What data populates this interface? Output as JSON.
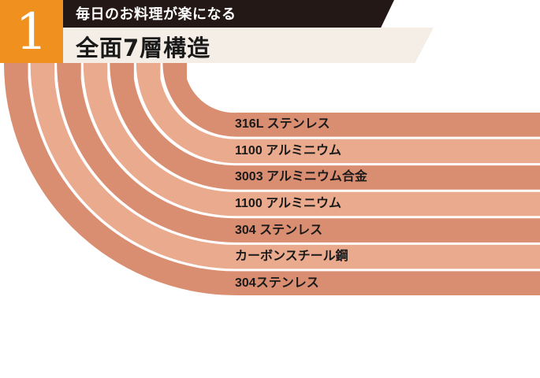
{
  "header": {
    "number": "1",
    "subtitle": "毎日のお料理が楽になる",
    "title": "全面7層構造"
  },
  "colors": {
    "accent": "#f0901e",
    "dark_band": "#231815",
    "light_band": "#f4eee7",
    "layer_dark": "#d98d71",
    "layer_light": "#e9aa8e"
  },
  "layers": [
    {
      "label": "316L ステンレス"
    },
    {
      "label": "1100 アルミニウム"
    },
    {
      "label": "3003 アルミニウム合金"
    },
    {
      "label": "1100 アルミニウム"
    },
    {
      "label": "304 ステンレス"
    },
    {
      "label": "カーボンスチール鋼"
    },
    {
      "label": "304ステンレス"
    }
  ]
}
